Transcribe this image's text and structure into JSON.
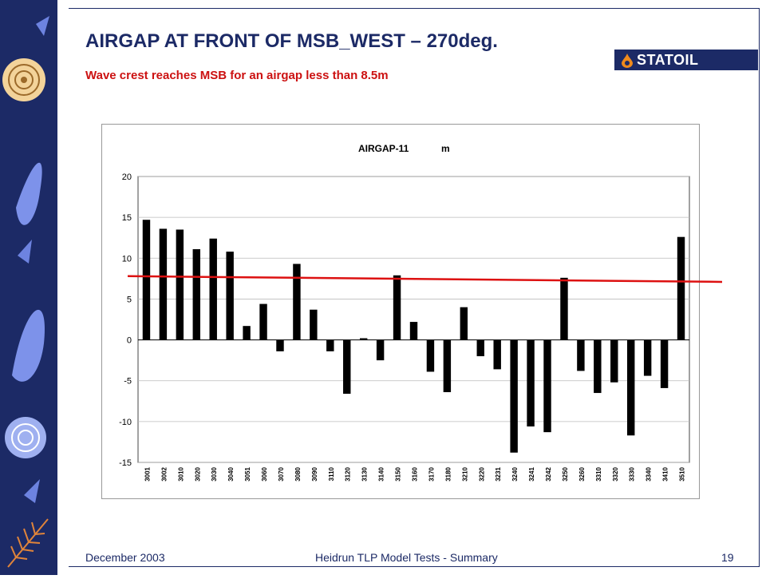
{
  "slide": {
    "title": "AIRGAP AT FRONT OF MSB_WEST – 270deg.",
    "subtitle": "Wave crest reaches MSB for an airgap less than 8.5m",
    "logo_text": "STATOIL",
    "logo_icon": "statoil-drop-icon",
    "footer_left": "December 2003",
    "footer_center": "Heidrun TLP Model Tests - Summary",
    "footer_right": "19",
    "colors": {
      "primary": "#1c2a66",
      "accent": "#cc1111",
      "logo_drop": "#f08a1c"
    }
  },
  "chart_data": {
    "type": "bar",
    "title": "AIRGAP-11",
    "unit_label": "m",
    "xlabel": "",
    "ylabel": "",
    "ylim": [
      -15,
      20
    ],
    "yticks": [
      20,
      15,
      10,
      5,
      0,
      -5,
      -10,
      -15
    ],
    "grid": true,
    "categories": [
      "3001",
      "3002",
      "3010",
      "3020",
      "3030",
      "3040",
      "3051",
      "3060",
      "3070",
      "3080",
      "3090",
      "3110",
      "3120",
      "3130",
      "3140",
      "3150",
      "3160",
      "3170",
      "3180",
      "3210",
      "3220",
      "3231",
      "3240",
      "3241",
      "3242",
      "3250",
      "3260",
      "3310",
      "3320",
      "3330",
      "3340",
      "3410",
      "3510"
    ],
    "values": [
      14.7,
      13.6,
      13.5,
      11.1,
      12.4,
      10.8,
      1.7,
      4.4,
      -1.4,
      9.3,
      3.7,
      -1.4,
      -6.6,
      0.2,
      -2.5,
      7.9,
      2.2,
      -3.9,
      -6.4,
      4.0,
      -2.0,
      -3.6,
      -13.8,
      -10.6,
      -11.3,
      7.6,
      -3.8,
      -6.5,
      -5.2,
      -11.7,
      -4.4,
      -5.9,
      12.6
    ],
    "annotations": [
      {
        "type": "threshold-line",
        "color": "#dd1111",
        "y_start": 7.8,
        "y_end": 7.1
      }
    ]
  }
}
